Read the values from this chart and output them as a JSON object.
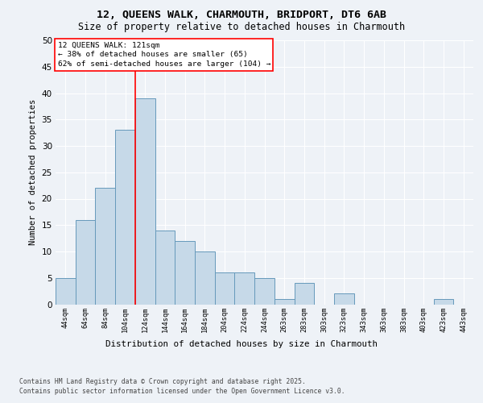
{
  "title_line1": "12, QUEENS WALK, CHARMOUTH, BRIDPORT, DT6 6AB",
  "title_line2": "Size of property relative to detached houses in Charmouth",
  "xlabel": "Distribution of detached houses by size in Charmouth",
  "ylabel": "Number of detached properties",
  "bar_categories": [
    "44sqm",
    "64sqm",
    "84sqm",
    "104sqm",
    "124sqm",
    "144sqm",
    "164sqm",
    "184sqm",
    "204sqm",
    "224sqm",
    "244sqm",
    "263sqm",
    "283sqm",
    "303sqm",
    "323sqm",
    "343sqm",
    "363sqm",
    "383sqm",
    "403sqm",
    "423sqm",
    "443sqm"
  ],
  "bar_values": [
    5,
    16,
    22,
    33,
    39,
    14,
    12,
    10,
    6,
    6,
    5,
    1,
    4,
    0,
    2,
    0,
    0,
    0,
    0,
    1,
    0
  ],
  "bar_color": "#c6d9e8",
  "bar_edge_color": "#6699bb",
  "ylim": [
    0,
    50
  ],
  "yticks": [
    0,
    5,
    10,
    15,
    20,
    25,
    30,
    35,
    40,
    45,
    50
  ],
  "red_line_index": 4,
  "annotation_title": "12 QUEENS WALK: 121sqm",
  "annotation_line1": "← 38% of detached houses are smaller (65)",
  "annotation_line2": "62% of semi-detached houses are larger (104) →",
  "footer_line1": "Contains HM Land Registry data © Crown copyright and database right 2025.",
  "footer_line2": "Contains public sector information licensed under the Open Government Licence v3.0.",
  "bg_color": "#eef2f7",
  "plot_bg_color": "#eef2f7",
  "grid_color": "#ffffff"
}
